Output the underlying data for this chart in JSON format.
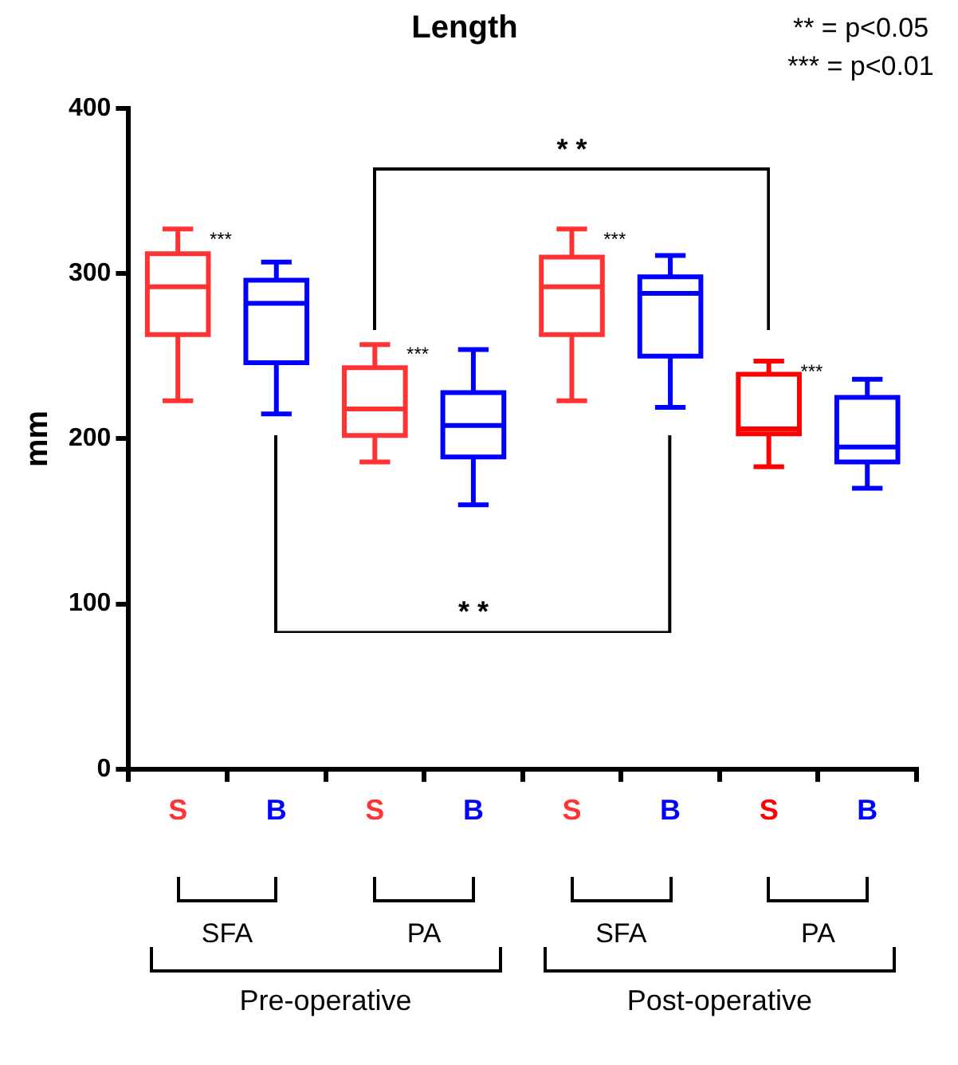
{
  "chart_data": {
    "type": "box",
    "title": "Length",
    "ylabel": "mm",
    "categories": [
      "S",
      "B",
      "S",
      "B",
      "S",
      "B",
      "S",
      "B"
    ],
    "colors": [
      "#ff3333",
      "#0000ff",
      "#ff3333",
      "#0000ff",
      "#ff3333",
      "#0000ff",
      "#ff0000",
      "#0000ff"
    ],
    "boxes": [
      {
        "low": 223,
        "q1": 263,
        "median": 292,
        "q3": 312,
        "high": 327
      },
      {
        "low": 215,
        "q1": 246,
        "median": 282,
        "q3": 296,
        "high": 307
      },
      {
        "low": 186,
        "q1": 202,
        "median": 218,
        "q3": 243,
        "high": 257
      },
      {
        "low": 160,
        "q1": 189,
        "median": 208,
        "q3": 228,
        "high": 254
      },
      {
        "low": 223,
        "q1": 263,
        "median": 292,
        "q3": 310,
        "high": 327
      },
      {
        "low": 219,
        "q1": 250,
        "median": 288,
        "q3": 298,
        "high": 311
      },
      {
        "low": 183,
        "q1": 203,
        "median": 206,
        "q3": 239,
        "high": 247
      },
      {
        "low": 170,
        "q1": 186,
        "median": 195,
        "q3": 225,
        "high": 236
      }
    ],
    "ylim": [
      0,
      400
    ],
    "yticks": [
      0,
      100,
      200,
      300,
      400
    ],
    "grid": false,
    "legend": false,
    "annotations": [
      "**  = p<0.05",
      "*** = p<0.01",
      "* *",
      "* *",
      "***",
      "***",
      "***",
      "***",
      "SFA",
      "PA",
      "SFA",
      "PA",
      "Pre-operative",
      "Post-operative"
    ]
  }
}
